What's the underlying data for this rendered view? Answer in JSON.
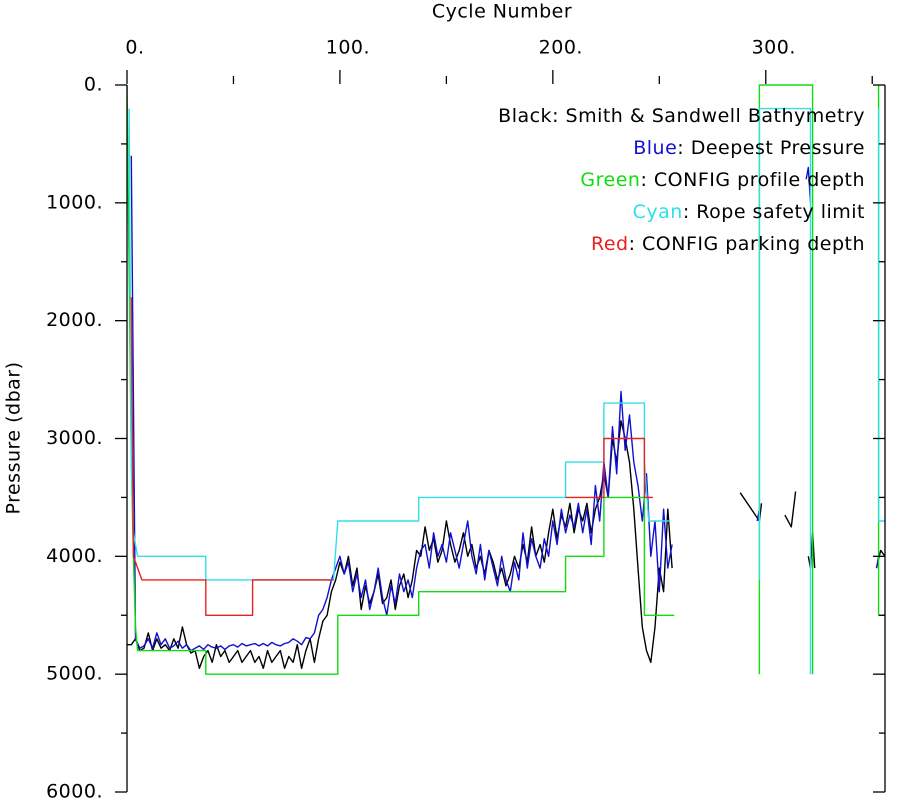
{
  "chart_data": {
    "type": "line",
    "x_label": "Cycle Number",
    "y_label": "Pressure (dbar)",
    "xlim": [
      0,
      356
    ],
    "ylim": [
      6000,
      0
    ],
    "xticks": [
      {
        "value": 0,
        "label": "0."
      },
      {
        "value": 100,
        "label": "100."
      },
      {
        "value": 200,
        "label": "200."
      },
      {
        "value": 300,
        "label": "300."
      }
    ],
    "xminor_ticks": [
      50,
      150,
      250,
      350
    ],
    "yticks": [
      {
        "value": 0,
        "label": "0."
      },
      {
        "value": 1000,
        "label": "1000."
      },
      {
        "value": 2000,
        "label": "2000."
      },
      {
        "value": 3000,
        "label": "3000."
      },
      {
        "value": 4000,
        "label": "4000."
      },
      {
        "value": 5000,
        "label": "5000."
      },
      {
        "value": 6000,
        "label": "6000."
      }
    ],
    "yminor_ticks": [
      500,
      1500,
      2500,
      3500,
      4500,
      5500
    ],
    "legend_position": "upper right",
    "series": [
      {
        "legend": [
          "Black",
          ": Smith & Sandwell Bathymetry"
        ],
        "color": "#000000",
        "x": [
          0,
          2,
          4,
          6,
          8,
          10,
          12,
          14,
          16,
          18,
          20,
          22,
          24,
          26,
          28,
          30,
          32,
          34,
          36,
          38,
          40,
          42,
          44,
          46,
          48,
          50,
          52,
          54,
          56,
          58,
          60,
          62,
          64,
          66,
          68,
          70,
          72,
          74,
          76,
          78,
          80,
          82,
          84,
          86,
          88,
          90,
          92,
          94,
          96,
          98,
          100,
          102,
          104,
          106,
          108,
          110,
          112,
          114,
          116,
          118,
          120,
          122,
          124,
          126,
          128,
          130,
          132,
          134,
          136,
          138,
          140,
          142,
          144,
          146,
          148,
          150,
          152,
          154,
          156,
          158,
          160,
          162,
          164,
          166,
          168,
          170,
          172,
          174,
          176,
          178,
          180,
          182,
          184,
          186,
          188,
          190,
          192,
          194,
          196,
          198,
          200,
          202,
          204,
          206,
          208,
          210,
          212,
          214,
          216,
          218,
          220,
          222,
          224,
          226,
          228,
          230,
          232,
          234,
          236,
          238,
          240,
          242,
          244,
          246,
          248,
          250,
          252,
          254,
          256,
          null,
          288,
          297,
          298,
          null,
          309,
          312,
          314,
          null,
          320,
          321,
          322,
          323,
          null,
          352,
          354,
          356
        ],
        "values": [
          4750,
          4750,
          4700,
          4800,
          4780,
          4650,
          4800,
          4700,
          4780,
          4750,
          4800,
          4700,
          4780,
          4600,
          4750,
          4820,
          4800,
          4950,
          4850,
          4800,
          4900,
          4750,
          4850,
          4800,
          4900,
          4850,
          4800,
          4900,
          4850,
          4800,
          4900,
          4850,
          4950,
          4800,
          4900,
          4850,
          4800,
          4950,
          4850,
          4900,
          4750,
          4950,
          4800,
          4700,
          4900,
          4700,
          4550,
          4500,
          4300,
          4200,
          4050,
          4150,
          4000,
          4250,
          4100,
          4450,
          4250,
          4400,
          4300,
          4150,
          4400,
          4350,
          4200,
          4450,
          4250,
          4150,
          4350,
          4200,
          3950,
          4000,
          3750,
          3950,
          3850,
          4050,
          3950,
          3700,
          3900,
          4050,
          3950,
          3800,
          4000,
          3900,
          4100,
          4000,
          4150,
          3950,
          4050,
          4200,
          4100,
          4250,
          4150,
          4000,
          4100,
          3900,
          4050,
          3750,
          4000,
          3900,
          4050,
          3800,
          3600,
          3850,
          3650,
          3750,
          3550,
          3800,
          3600,
          3700,
          3550,
          3800,
          3600,
          3500,
          3300,
          3500,
          3000,
          3200,
          2850,
          3000,
          3200,
          3600,
          4100,
          4600,
          4800,
          4900,
          4600,
          4100,
          4300,
          3600,
          4100,
          null,
          3460,
          3700,
          3550,
          null,
          3650,
          3750,
          3450,
          null,
          4000,
          4100,
          3800,
          4100,
          null,
          4100,
          3950,
          4000
        ]
      },
      {
        "legend": [
          "Blue",
          ": Deepest Pressure"
        ],
        "color": "#1010d0",
        "x": [
          2,
          4,
          6,
          8,
          10,
          12,
          14,
          16,
          18,
          20,
          22,
          24,
          26,
          28,
          30,
          32,
          34,
          36,
          38,
          40,
          42,
          44,
          46,
          48,
          50,
          52,
          54,
          56,
          58,
          60,
          62,
          64,
          66,
          68,
          70,
          72,
          74,
          76,
          78,
          80,
          82,
          84,
          86,
          88,
          90,
          92,
          94,
          96,
          98,
          100,
          102,
          104,
          106,
          108,
          110,
          112,
          114,
          116,
          118,
          120,
          122,
          124,
          126,
          128,
          130,
          132,
          134,
          136,
          138,
          140,
          142,
          144,
          146,
          148,
          150,
          152,
          154,
          156,
          158,
          160,
          162,
          164,
          166,
          168,
          170,
          172,
          174,
          176,
          178,
          180,
          182,
          184,
          186,
          188,
          190,
          192,
          194,
          196,
          198,
          200,
          202,
          204,
          206,
          208,
          210,
          212,
          214,
          216,
          218,
          220,
          222,
          224,
          226,
          228,
          230,
          232,
          234,
          236,
          238,
          240,
          242,
          244,
          246,
          248,
          250,
          252,
          254,
          256,
          null,
          296,
          297,
          null,
          319,
          320,
          321,
          null,
          352,
          353
        ],
        "values": [
          600,
          4700,
          4780,
          4760,
          4700,
          4780,
          4650,
          4750,
          4700,
          4780,
          4760,
          4720,
          4780,
          4750,
          4800,
          4780,
          4760,
          4790,
          4750,
          4770,
          4780,
          4760,
          4790,
          4760,
          4750,
          4770,
          4740,
          4760,
          4750,
          4740,
          4760,
          4740,
          4760,
          4730,
          4750,
          4760,
          4740,
          4730,
          4700,
          4720,
          4750,
          4690,
          4700,
          4650,
          4500,
          4450,
          4350,
          4200,
          4100,
          4000,
          4150,
          4050,
          4300,
          4150,
          4350,
          4200,
          4450,
          4300,
          4100,
          4350,
          4500,
          4250,
          4400,
          4150,
          4300,
          4200,
          4350,
          4100,
          3950,
          3900,
          4100,
          3800,
          4000,
          3900,
          4050,
          3800,
          3950,
          4100,
          3900,
          3700,
          4000,
          4150,
          3900,
          4200,
          3950,
          4100,
          4250,
          4000,
          4200,
          4300,
          4050,
          4200,
          3800,
          4100,
          3850,
          4000,
          4100,
          3850,
          4000,
          3700,
          3900,
          3600,
          3800,
          3650,
          3750,
          3550,
          3800,
          3600,
          3900,
          3400,
          3700,
          3200,
          3500,
          2900,
          3300,
          2600,
          3100,
          2800,
          3200,
          3400,
          3700,
          3300,
          4000,
          3700,
          4300,
          3600,
          4100,
          3900,
          null,
          3700,
          3600,
          null,
          800,
          700,
          1000,
          null,
          4100,
          4000
        ]
      },
      {
        "legend": [
          "Green",
          ": CONFIG profile depth"
        ],
        "color": "#10dd10",
        "x": [
          0,
          2,
          3,
          4,
          5,
          37,
          37,
          99,
          99,
          137,
          137,
          206,
          206,
          224,
          224,
          243,
          243,
          257,
          null,
          297,
          297,
          322,
          322,
          null,
          353,
          353,
          356
        ],
        "values": [
          0,
          3200,
          4000,
          4600,
          4800,
          4800,
          5000,
          5000,
          4500,
          4500,
          4300,
          4300,
          4000,
          4000,
          3500,
          3500,
          4500,
          4500,
          null,
          5000,
          0,
          0,
          5000,
          null,
          0,
          4500,
          4500
        ]
      },
      {
        "legend": [
          "Cyan",
          ": Rope safety limit"
        ],
        "color": "#30e0e8",
        "x": [
          1,
          2,
          3,
          5,
          37,
          37,
          97,
          99,
          137,
          137,
          206,
          206,
          224,
          224,
          243,
          243,
          245,
          255,
          null,
          297,
          297,
          321,
          321,
          null,
          353,
          353,
          356
        ],
        "values": [
          200,
          3200,
          3800,
          4000,
          4000,
          4200,
          4200,
          3700,
          3700,
          3500,
          3500,
          3200,
          3200,
          2700,
          2700,
          3200,
          3700,
          3700,
          null,
          4200,
          200,
          200,
          5000,
          null,
          200,
          3700,
          3700
        ]
      },
      {
        "legend": [
          "Red",
          ": CONFIG parking depth"
        ],
        "color": "#e82020",
        "x": [
          2,
          3,
          7,
          37,
          37,
          59,
          59,
          97,
          null,
          206,
          224,
          224,
          243,
          243,
          247
        ],
        "values": [
          1800,
          4000,
          4200,
          4200,
          4500,
          4500,
          4200,
          4200,
          null,
          3500,
          3500,
          3000,
          3000,
          3500,
          3500
        ]
      }
    ]
  }
}
